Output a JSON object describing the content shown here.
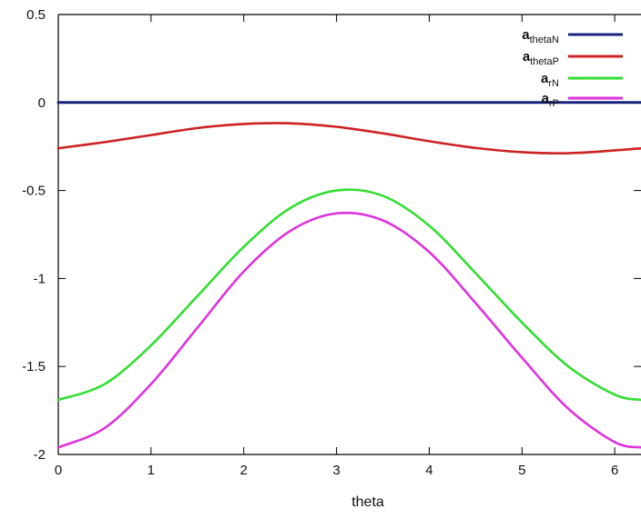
{
  "chart_data": {
    "type": "line",
    "title": "",
    "xlabel": "theta",
    "ylabel": "",
    "xlim": [
      0,
      6.2832
    ],
    "ylim": [
      -2,
      0.5
    ],
    "xticks": [
      0,
      1,
      2,
      3,
      4,
      5,
      6
    ],
    "xtick_labels": [
      "0",
      "1",
      "2",
      "3",
      "4",
      "5",
      "6"
    ],
    "yticks": [
      0.5,
      0,
      -0.5,
      -1,
      -1.5,
      -2
    ],
    "ytick_labels": [
      "0.5",
      "0",
      "-0.5",
      "-1",
      "-1.5",
      "-2"
    ],
    "grid": false,
    "legend_position": "top-right",
    "series": [
      {
        "name": "athetaN",
        "legend_main": "a",
        "legend_sub": "thetaN",
        "color": "#1a237e",
        "x": [
          0,
          0.5,
          1,
          1.5,
          2,
          2.5,
          3,
          3.5,
          4,
          4.5,
          5,
          5.5,
          6,
          6.2832
        ],
        "y": [
          0,
          0,
          0,
          0,
          0,
          0,
          0,
          0,
          0,
          0,
          0,
          0,
          0,
          0
        ]
      },
      {
        "name": "athetaP",
        "legend_main": "a",
        "legend_sub": "thetaP",
        "color": "#cc2222",
        "x": [
          0,
          0.5,
          1,
          1.5,
          2,
          2.5,
          3,
          3.5,
          4,
          4.5,
          5,
          5.5,
          6,
          6.2832
        ],
        "y": [
          -0.26,
          -0.225,
          -0.185,
          -0.145,
          -0.122,
          -0.118,
          -0.138,
          -0.175,
          -0.22,
          -0.258,
          -0.282,
          -0.288,
          -0.272,
          -0.26
        ]
      },
      {
        "name": "arN",
        "legend_main": "a",
        "legend_sub": "rN",
        "color": "#33dd33",
        "x": [
          0,
          0.5,
          1,
          1.5,
          2,
          2.5,
          3,
          3.5,
          4,
          4.5,
          5,
          5.5,
          6,
          6.2832
        ],
        "y": [
          -1.69,
          -1.6,
          -1.38,
          -1.1,
          -0.82,
          -0.6,
          -0.5,
          -0.53,
          -0.7,
          -0.97,
          -1.25,
          -1.5,
          -1.66,
          -1.69
        ]
      },
      {
        "name": "arP",
        "legend_main": "a",
        "legend_sub": "rP",
        "color": "#dd33dd",
        "x": [
          0,
          0.5,
          1,
          1.5,
          2,
          2.5,
          3,
          3.5,
          4,
          4.5,
          5,
          5.5,
          6,
          6.2832
        ],
        "y": [
          -1.96,
          -1.85,
          -1.6,
          -1.28,
          -0.96,
          -0.73,
          -0.63,
          -0.67,
          -0.85,
          -1.14,
          -1.45,
          -1.74,
          -1.93,
          -1.96
        ]
      }
    ]
  }
}
